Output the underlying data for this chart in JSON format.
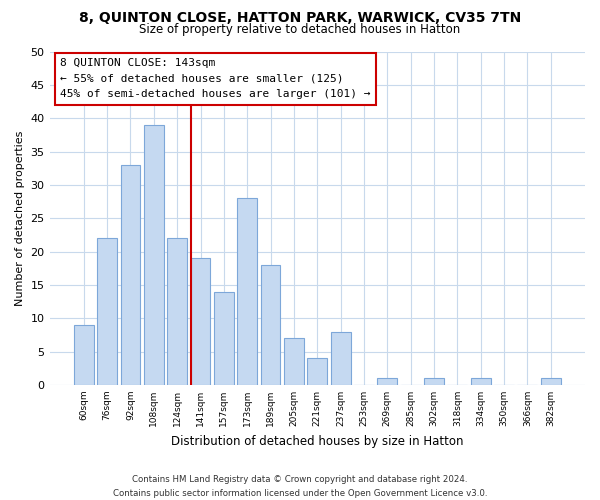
{
  "title1": "8, QUINTON CLOSE, HATTON PARK, WARWICK, CV35 7TN",
  "title2": "Size of property relative to detached houses in Hatton",
  "xlabel": "Distribution of detached houses by size in Hatton",
  "ylabel": "Number of detached properties",
  "bar_labels": [
    "60sqm",
    "76sqm",
    "92sqm",
    "108sqm",
    "124sqm",
    "141sqm",
    "157sqm",
    "173sqm",
    "189sqm",
    "205sqm",
    "221sqm",
    "237sqm",
    "253sqm",
    "269sqm",
    "285sqm",
    "302sqm",
    "318sqm",
    "334sqm",
    "350sqm",
    "366sqm",
    "382sqm"
  ],
  "bar_values": [
    9,
    22,
    33,
    39,
    22,
    19,
    14,
    28,
    18,
    7,
    4,
    8,
    0,
    1,
    0,
    1,
    0,
    1,
    0,
    0,
    1
  ],
  "bar_color": "#c5d9f1",
  "bar_edge_color": "#7da7d9",
  "vline_color": "#cc0000",
  "annotation_title": "8 QUINTON CLOSE: 143sqm",
  "annotation_line1": "← 55% of detached houses are smaller (125)",
  "annotation_line2": "45% of semi-detached houses are larger (101) →",
  "annotation_box_color": "#ffffff",
  "annotation_box_edge": "#cc0000",
  "ylim": [
    0,
    50
  ],
  "yticks": [
    0,
    5,
    10,
    15,
    20,
    25,
    30,
    35,
    40,
    45,
    50
  ],
  "footer1": "Contains HM Land Registry data © Crown copyright and database right 2024.",
  "footer2": "Contains public sector information licensed under the Open Government Licence v3.0.",
  "bg_color": "#ffffff",
  "grid_color": "#c8d9ec"
}
